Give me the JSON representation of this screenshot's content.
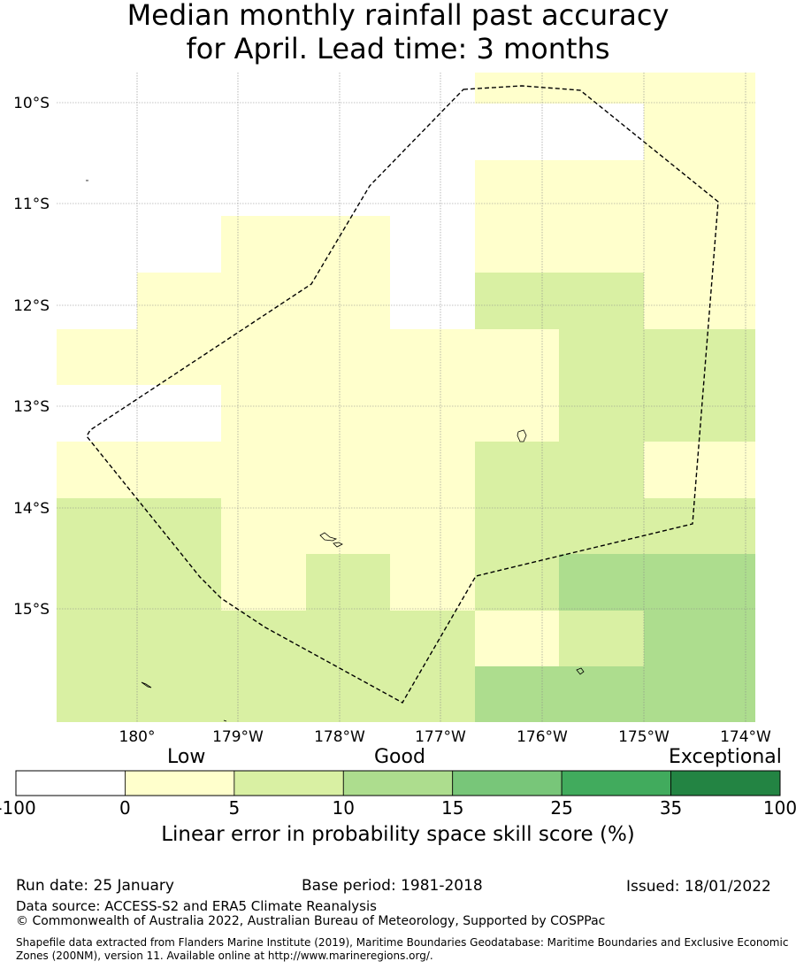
{
  "title_line1": "Median monthly rainfall past accuracy",
  "title_line2": "for April. Lead time: 3 months",
  "map": {
    "lon_ticks": [
      "180°",
      "179°W",
      "178°W",
      "177°W",
      "176°W",
      "175°W",
      "174°W"
    ],
    "lat_ticks": [
      "10°S",
      "11°S",
      "12°S",
      "13°S",
      "14°S",
      "15°S"
    ],
    "palette": {
      "0": "#ffffff",
      "1": "#ffffcc",
      "2": "#d9f0a3",
      "3": "#addd8e"
    },
    "grid_categories": [
      [
        0,
        0,
        0,
        0,
        0,
        1,
        1,
        1
      ],
      [
        0,
        0,
        0,
        0,
        0,
        0,
        0,
        1
      ],
      [
        0,
        0,
        0,
        0,
        0,
        1,
        1,
        1
      ],
      [
        0,
        0,
        1,
        1,
        0,
        1,
        1,
        1
      ],
      [
        0,
        1,
        1,
        1,
        0,
        2,
        2,
        1
      ],
      [
        1,
        1,
        1,
        1,
        1,
        1,
        2,
        2
      ],
      [
        0,
        0,
        1,
        1,
        1,
        1,
        2,
        2
      ],
      [
        1,
        1,
        1,
        1,
        1,
        2,
        2,
        1
      ],
      [
        2,
        2,
        1,
        1,
        1,
        2,
        2,
        2
      ],
      [
        2,
        2,
        1,
        2,
        1,
        2,
        3,
        3
      ],
      [
        2,
        2,
        2,
        2,
        2,
        1,
        2,
        3
      ],
      [
        2,
        2,
        2,
        2,
        2,
        3,
        3,
        3
      ]
    ]
  },
  "colorbar": {
    "category_labels": [
      "Low",
      "Good",
      "Exceptional"
    ],
    "bins": [
      {
        "from": "-100",
        "color": "#ffffff"
      },
      {
        "from": "0",
        "color": "#ffffcc"
      },
      {
        "from": "5",
        "color": "#d9f0a3"
      },
      {
        "from": "10",
        "color": "#addd8e"
      },
      {
        "from": "15",
        "color": "#78c679"
      },
      {
        "from": "25",
        "color": "#41ab5d"
      },
      {
        "from": "35",
        "color": "#238443"
      }
    ],
    "end_label": "100",
    "title": "Linear error in probability space skill score (%)"
  },
  "footer": {
    "run_date": "Run date: 25 January",
    "base_period": "Base period: 1981-2018",
    "issued": "Issued: 18/01/2022",
    "data_source": "Data source: ACCESS-S2 and ERA5 Climate Reanalysis",
    "copyright": "© Commonwealth of Australia 2022, Australian Bureau of Meteorology, Supported by COSPPac",
    "shapefile": "Shapefile data extracted from Flanders Marine Institute (2019), Maritime Boundaries Geodatabase: Maritime Boundaries and Exclusive Economic Zones (200NM), version 11. Available online at http://www.marineregions.org/."
  }
}
